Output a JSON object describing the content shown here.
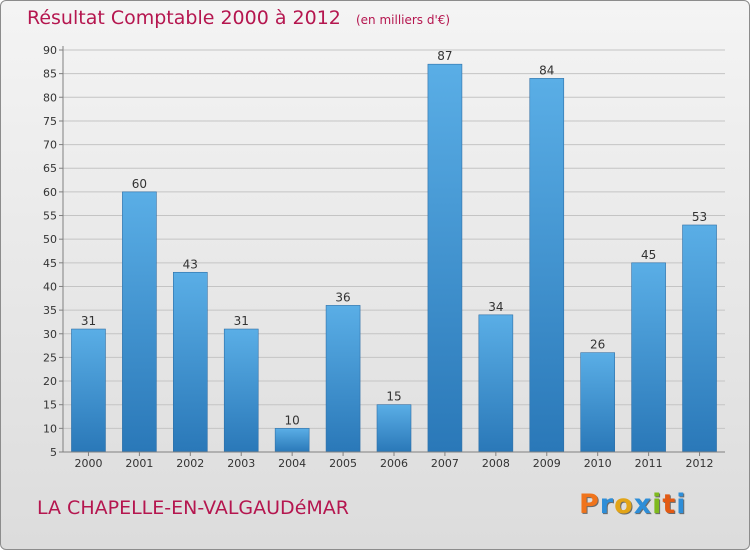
{
  "header": {
    "title": "Résultat Comptable 2000 à 2012",
    "unit": "(en milliers d'€)"
  },
  "footer": {
    "commune": "LA CHAPELLE-EN-VALGAUDéMAR",
    "logo_letters": [
      "P",
      "r",
      "o",
      "x",
      "i",
      "t",
      "i"
    ]
  },
  "colors": {
    "title": "#b5164f",
    "bar_top": "#5aaee6",
    "bar_bottom": "#2a78b8",
    "logo": [
      "#f0741c",
      "#2e8ed8",
      "#e2a417",
      "#2e8ed8",
      "#7fba1f",
      "#e25a14",
      "#2e8ed8"
    ]
  },
  "chart_data": {
    "type": "bar",
    "categories": [
      "2000",
      "2001",
      "2002",
      "2003",
      "2004",
      "2005",
      "2006",
      "2007",
      "2008",
      "2009",
      "2010",
      "2011",
      "2012"
    ],
    "values": [
      31,
      60,
      43,
      31,
      10,
      36,
      15,
      87,
      34,
      84,
      26,
      45,
      53
    ],
    "ylim": [
      5,
      90
    ],
    "yticks": [
      5,
      10,
      15,
      20,
      25,
      30,
      35,
      40,
      45,
      50,
      55,
      60,
      65,
      70,
      75,
      80,
      85,
      90
    ],
    "grid": true,
    "data_labels": true
  }
}
